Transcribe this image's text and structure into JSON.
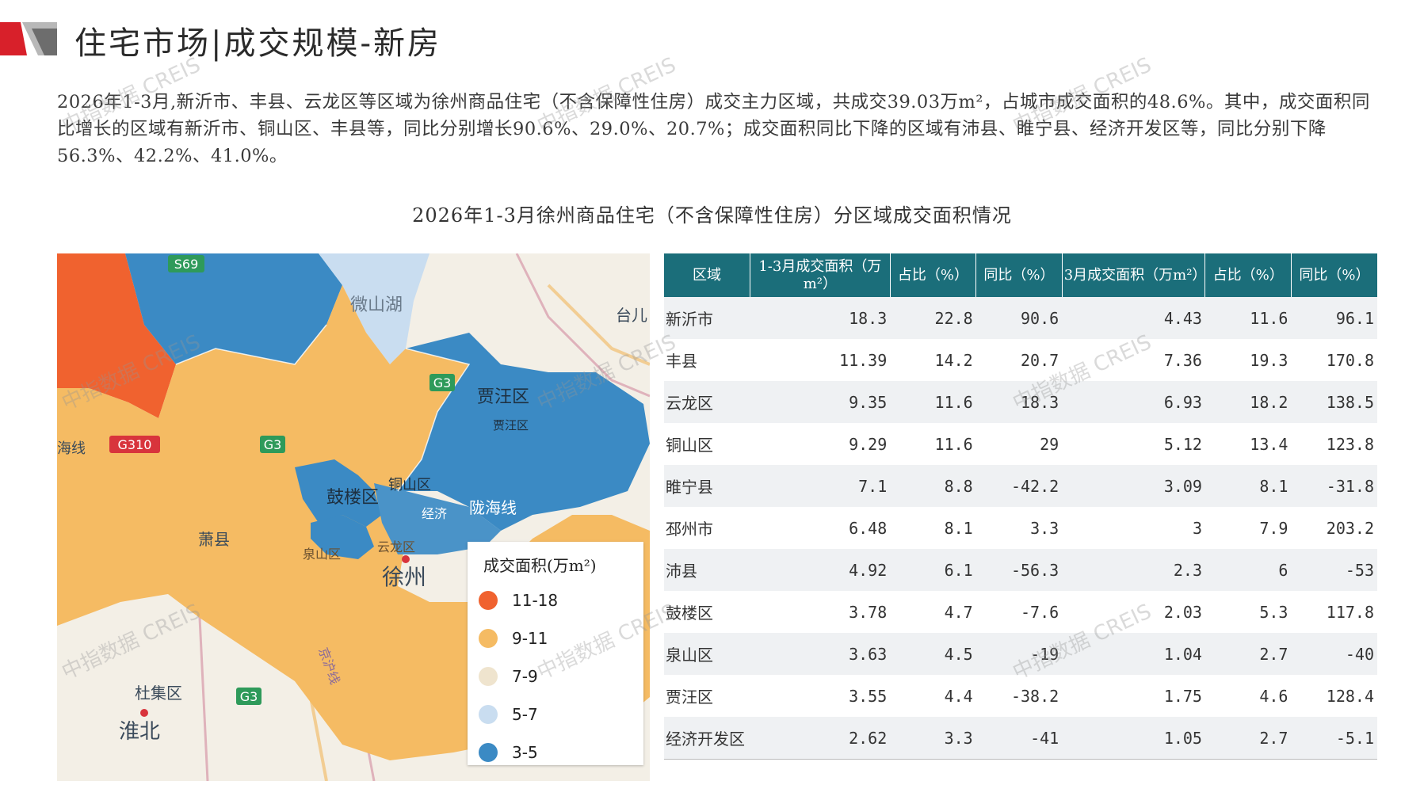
{
  "header": {
    "title": "住宅市场|成交规模-新房"
  },
  "paragraph": "2026年1-3月,新沂市、丰县、云龙区等区域为徐州商品住宅（不含保障性住房）成交主力区域，共成交39.03万m²，占城市成交面积的48.6%。其中，成交面积同比增长的区域有新沂市、铜山区、丰县等，同比分别增长90.6%、29.0%、20.7%；成交面积同比下降的区域有沛县、睢宁县、经济开发区等，同比分别下降56.3%、42.2%、41.0%。",
  "chart_title": "2026年1-3月徐州商品住宅（不含保障性住房）分区域成交面积情况",
  "map": {
    "labels": {
      "weishan_lake": "微山湖",
      "jiawang": "贾汪区",
      "jiawang_small": "贾汪区",
      "gulou": "鼓楼区",
      "tongshan": "铜山区",
      "longhai": "陇海线",
      "jingjikaifa": "经济",
      "quanshan": "泉山区",
      "yunlong": "云龙区",
      "xuzhou": "徐州",
      "xiaoxian": "萧县",
      "duji": "杜集区",
      "huaibei": "淮北",
      "taier": "台儿",
      "haixian": "海线",
      "jinghu": "京沪线",
      "road_s69": "S69",
      "road_g3_a": "G3",
      "road_g3_b": "G3",
      "road_g3_c": "G3",
      "road_g310": "G310"
    },
    "colors": {
      "range_11_18": "#f0622f",
      "range_9_11": "#f5bb63",
      "range_7_9": "#efe4ce",
      "range_5_7": "#c9ddf0",
      "range_3_5": "#3b8ac4"
    }
  },
  "legend": {
    "title": "成交面积(万m²)",
    "items": [
      {
        "label": "11-18",
        "color": "#f0622f"
      },
      {
        "label": "9-11",
        "color": "#f5bb63"
      },
      {
        "label": "7-9",
        "color": "#efe4ce"
      },
      {
        "label": "5-7",
        "color": "#c9ddf0"
      },
      {
        "label": "3-5",
        "color": "#3b8ac4"
      }
    ]
  },
  "table": {
    "headers": [
      "区域",
      "1-3月成交面积（万m²）",
      "占比（%）",
      "同比（%）",
      "3月成交面积（万m²）",
      "占比（%）",
      "同比（%）"
    ],
    "rows": [
      [
        "新沂市",
        "18.3",
        "22.8",
        "90.6",
        "4.43",
        "11.6",
        "96.1"
      ],
      [
        "丰县",
        "11.39",
        "14.2",
        "20.7",
        "7.36",
        "19.3",
        "170.8"
      ],
      [
        "云龙区",
        "9.35",
        "11.6",
        "18.3",
        "6.93",
        "18.2",
        "138.5"
      ],
      [
        "铜山区",
        "9.29",
        "11.6",
        "29",
        "5.12",
        "13.4",
        "123.8"
      ],
      [
        "睢宁县",
        "7.1",
        "8.8",
        "-42.2",
        "3.09",
        "8.1",
        "-31.8"
      ],
      [
        "邳州市",
        "6.48",
        "8.1",
        "3.3",
        "3",
        "7.9",
        "203.2"
      ],
      [
        "沛县",
        "4.92",
        "6.1",
        "-56.3",
        "2.3",
        "6",
        "-53"
      ],
      [
        "鼓楼区",
        "3.78",
        "4.7",
        "-7.6",
        "2.03",
        "5.3",
        "117.8"
      ],
      [
        "泉山区",
        "3.63",
        "4.5",
        "-19",
        "1.04",
        "2.7",
        "-40"
      ],
      [
        "贾汪区",
        "3.55",
        "4.4",
        "-38.2",
        "1.75",
        "4.6",
        "128.4"
      ],
      [
        "经济开发区",
        "2.62",
        "3.3",
        "-41",
        "1.05",
        "2.7",
        "-5.1"
      ]
    ]
  },
  "watermark": "中指数据 CREIS"
}
